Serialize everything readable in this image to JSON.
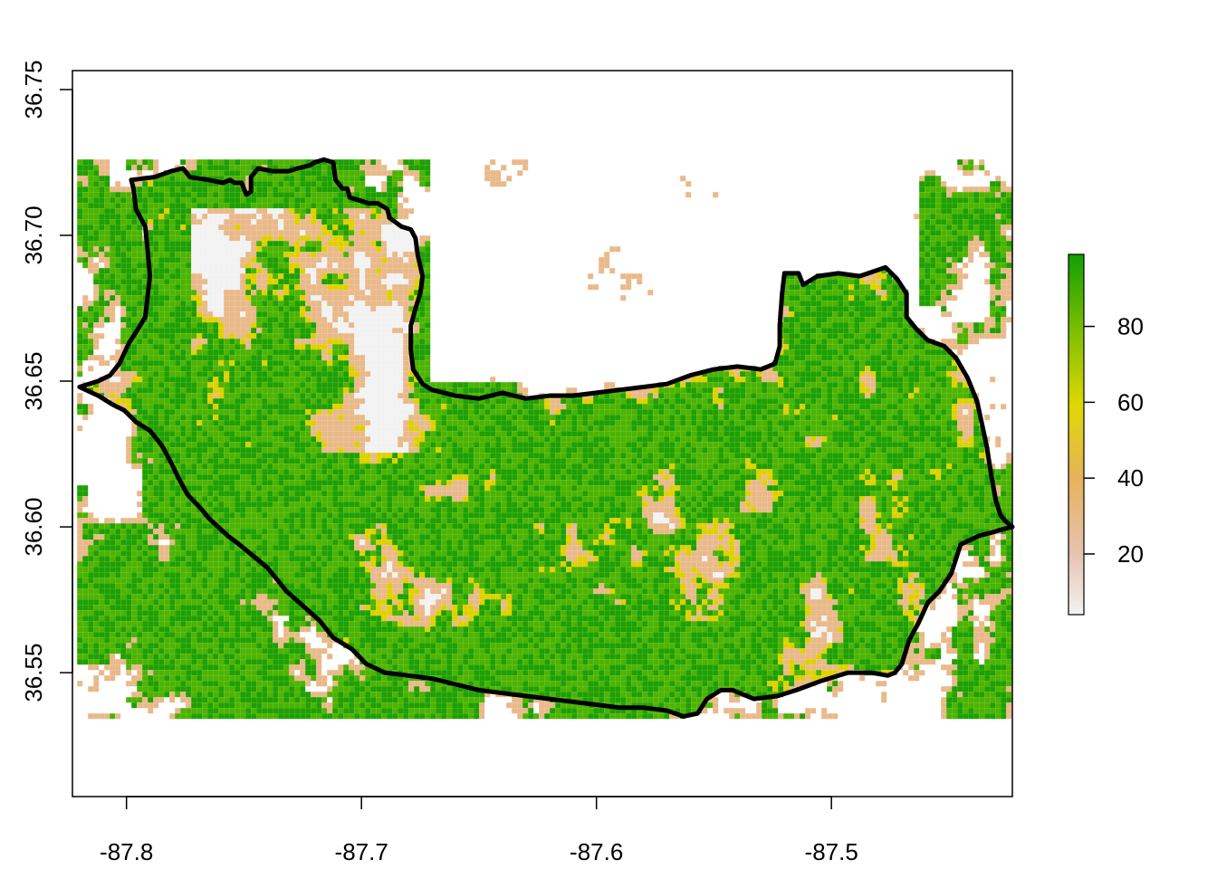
{
  "map": {
    "x_axis": {
      "range": [
        -87.823,
        -87.423
      ],
      "ticks": [
        {
          "value": -87.8,
          "label": "-87.8"
        },
        {
          "value": -87.7,
          "label": "-87.7"
        },
        {
          "value": -87.6,
          "label": "-87.6"
        },
        {
          "value": -87.5,
          "label": "-87.5"
        }
      ]
    },
    "y_axis": {
      "range": [
        36.5075,
        36.7565
      ],
      "ticks": [
        {
          "value": 36.55,
          "label": "36.55"
        },
        {
          "value": 36.6,
          "label": "36.60"
        },
        {
          "value": 36.65,
          "label": "36.65"
        },
        {
          "value": 36.7,
          "label": "36.70"
        },
        {
          "value": 36.75,
          "label": "36.75"
        }
      ]
    },
    "raster_extent": {
      "x": [
        -87.821,
        -87.422
      ],
      "y": [
        36.535,
        36.726
      ]
    },
    "colors": {
      "low": "#f2f2f2",
      "tan": "#e9b98a",
      "yellow": "#e0d000",
      "green": "#4cb400",
      "dark_green": "#1ea000",
      "outline": "#000000"
    },
    "boundary_lonlat": [
      [
        -87.798,
        36.719
      ],
      [
        -87.788,
        36.72
      ],
      [
        -87.781,
        36.722
      ],
      [
        -87.776,
        36.723
      ],
      [
        -87.773,
        36.72
      ],
      [
        -87.765,
        36.719
      ],
      [
        -87.759,
        36.718
      ],
      [
        -87.756,
        36.719
      ],
      [
        -87.754,
        36.718
      ],
      [
        -87.751,
        36.718
      ],
      [
        -87.749,
        36.714
      ],
      [
        -87.747,
        36.715
      ],
      [
        -87.747,
        36.72
      ],
      [
        -87.744,
        36.723
      ],
      [
        -87.738,
        36.722
      ],
      [
        -87.731,
        36.722
      ],
      [
        -87.727,
        36.723
      ],
      [
        -87.722,
        36.724
      ],
      [
        -87.72,
        36.725
      ],
      [
        -87.716,
        36.726
      ],
      [
        -87.712,
        36.725
      ],
      [
        -87.711,
        36.719
      ],
      [
        -87.708,
        36.716
      ],
      [
        -87.706,
        36.716
      ],
      [
        -87.705,
        36.713
      ],
      [
        -87.701,
        36.712
      ],
      [
        -87.697,
        36.711
      ],
      [
        -87.693,
        36.711
      ],
      [
        -87.689,
        36.709
      ],
      [
        -87.688,
        36.706
      ],
      [
        -87.683,
        36.703
      ],
      [
        -87.679,
        36.702
      ],
      [
        -87.677,
        36.699
      ],
      [
        -87.676,
        36.693
      ],
      [
        -87.674,
        36.686
      ],
      [
        -87.675,
        36.68
      ],
      [
        -87.677,
        36.675
      ],
      [
        -87.679,
        36.669
      ],
      [
        -87.679,
        36.661
      ],
      [
        -87.678,
        36.654
      ],
      [
        -87.674,
        36.649
      ],
      [
        -87.67,
        36.647
      ],
      [
        -87.66,
        36.645
      ],
      [
        -87.65,
        36.644
      ],
      [
        -87.64,
        36.646
      ],
      [
        -87.63,
        36.644
      ],
      [
        -87.62,
        36.645
      ],
      [
        -87.61,
        36.645
      ],
      [
        -87.6,
        36.646
      ],
      [
        -87.59,
        36.647
      ],
      [
        -87.58,
        36.648
      ],
      [
        -87.57,
        36.649
      ],
      [
        -87.56,
        36.652
      ],
      [
        -87.55,
        36.654
      ],
      [
        -87.54,
        36.655
      ],
      [
        -87.53,
        36.654
      ],
      [
        -87.524,
        36.656
      ],
      [
        -87.522,
        36.662
      ],
      [
        -87.522,
        36.669
      ],
      [
        -87.521,
        36.68
      ],
      [
        -87.52,
        36.687
      ],
      [
        -87.514,
        36.687
      ],
      [
        -87.512,
        36.683
      ],
      [
        -87.506,
        36.686
      ],
      [
        -87.497,
        36.687
      ],
      [
        -87.488,
        36.686
      ],
      [
        -87.477,
        36.689
      ],
      [
        -87.472,
        36.685
      ],
      [
        -87.468,
        36.68
      ],
      [
        -87.468,
        36.672
      ],
      [
        -87.464,
        36.668
      ],
      [
        -87.459,
        36.664
      ],
      [
        -87.452,
        36.662
      ],
      [
        -87.447,
        36.658
      ],
      [
        -87.442,
        36.651
      ],
      [
        -87.438,
        36.643
      ],
      [
        -87.434,
        36.628
      ],
      [
        -87.432,
        36.618
      ],
      [
        -87.43,
        36.609
      ],
      [
        -87.428,
        36.604
      ],
      [
        -87.426,
        36.602
      ],
      [
        -87.423,
        36.6
      ],
      [
        -87.428,
        36.599
      ],
      [
        -87.432,
        36.598
      ],
      [
        -87.437,
        36.597
      ],
      [
        -87.445,
        36.594
      ],
      [
        -87.449,
        36.584
      ],
      [
        -87.454,
        36.578
      ],
      [
        -87.459,
        36.574
      ],
      [
        -87.463,
        36.567
      ],
      [
        -87.467,
        36.561
      ],
      [
        -87.47,
        36.553
      ],
      [
        -87.473,
        36.55
      ],
      [
        -87.476,
        36.549
      ],
      [
        -87.483,
        36.55
      ],
      [
        -87.493,
        36.55
      ],
      [
        -87.505,
        36.547
      ],
      [
        -87.515,
        36.544
      ],
      [
        -87.523,
        36.542
      ],
      [
        -87.533,
        36.541
      ],
      [
        -87.542,
        36.544
      ],
      [
        -87.547,
        36.544
      ],
      [
        -87.553,
        36.541
      ],
      [
        -87.557,
        36.536
      ],
      [
        -87.563,
        36.535
      ],
      [
        -87.57,
        36.537
      ],
      [
        -87.58,
        36.538
      ],
      [
        -87.59,
        36.538
      ],
      [
        -87.6,
        36.539
      ],
      [
        -87.61,
        36.54
      ],
      [
        -87.62,
        36.541
      ],
      [
        -87.63,
        36.542
      ],
      [
        -87.64,
        36.543
      ],
      [
        -87.65,
        36.544
      ],
      [
        -87.66,
        36.546
      ],
      [
        -87.67,
        36.548
      ],
      [
        -87.68,
        36.549
      ],
      [
        -87.69,
        36.55
      ],
      [
        -87.698,
        36.553
      ],
      [
        -87.704,
        36.558
      ],
      [
        -87.712,
        36.562
      ],
      [
        -87.718,
        36.568
      ],
      [
        -87.725,
        36.573
      ],
      [
        -87.732,
        36.578
      ],
      [
        -87.736,
        36.582
      ],
      [
        -87.74,
        36.586
      ],
      [
        -87.746,
        36.59
      ],
      [
        -87.752,
        36.594
      ],
      [
        -87.757,
        36.597
      ],
      [
        -87.761,
        36.6
      ],
      [
        -87.765,
        36.603
      ],
      [
        -87.768,
        36.606
      ],
      [
        -87.774,
        36.611
      ],
      [
        -87.778,
        36.617
      ],
      [
        -87.781,
        36.622
      ],
      [
        -87.785,
        36.628
      ],
      [
        -87.79,
        36.633
      ],
      [
        -87.796,
        36.636
      ],
      [
        -87.801,
        36.64
      ],
      [
        -87.806,
        36.642
      ],
      [
        -87.812,
        36.645
      ],
      [
        -87.82,
        36.648
      ],
      [
        -87.812,
        36.65
      ],
      [
        -87.807,
        36.652
      ],
      [
        -87.803,
        36.656
      ],
      [
        -87.799,
        36.663
      ],
      [
        -87.795,
        36.668
      ],
      [
        -87.792,
        36.672
      ],
      [
        -87.791,
        36.679
      ],
      [
        -87.79,
        36.686
      ],
      [
        -87.791,
        36.695
      ],
      [
        -87.792,
        36.703
      ],
      [
        -87.796,
        36.709
      ],
      [
        -87.797,
        36.716
      ],
      [
        -87.798,
        36.719
      ]
    ]
  },
  "legend": {
    "range": [
      4,
      99
    ],
    "ticks": [
      {
        "value": 20,
        "label": "20"
      },
      {
        "value": 40,
        "label": "40"
      },
      {
        "value": 60,
        "label": "60"
      },
      {
        "value": 80,
        "label": "80"
      }
    ]
  }
}
